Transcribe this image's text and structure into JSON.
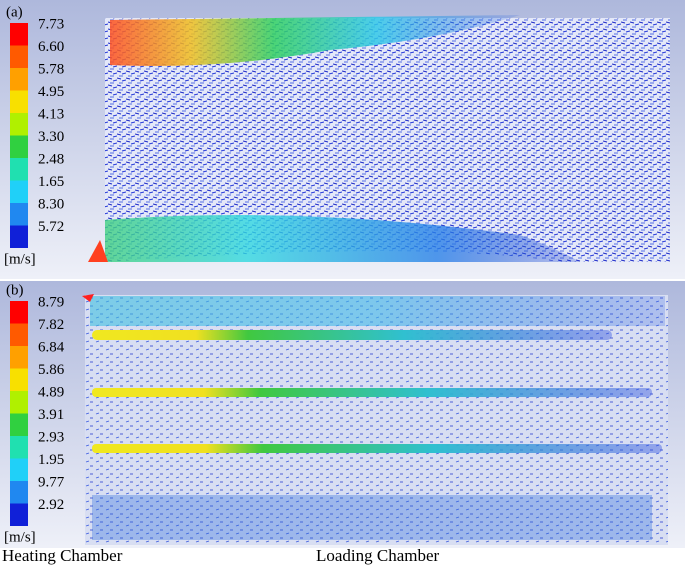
{
  "panels": [
    {
      "label": "(a)",
      "colorbar": [
        "7.73",
        "6.60",
        "5.78",
        "4.95",
        "4.13",
        "3.30",
        "2.48",
        "1.65",
        "8.30",
        "5.72"
      ],
      "unit": "[m/s]"
    },
    {
      "label": "(b)",
      "colorbar": [
        "8.79",
        "7.82",
        "6.84",
        "5.86",
        "4.89",
        "3.91",
        "2.93",
        "1.95",
        "9.77",
        "2.92"
      ],
      "unit": "[m/s]"
    }
  ],
  "captions": {
    "left": "Heating Chamber",
    "right": "Loading Chamber"
  }
}
